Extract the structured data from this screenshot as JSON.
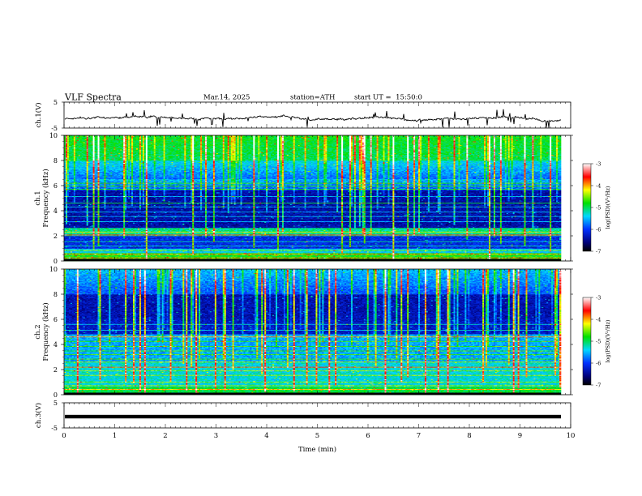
{
  "header": {
    "title": "VLF Spectra",
    "date": "Mar.14, 2025",
    "station": "station=ATH",
    "start": "start UT =  15:50:0"
  },
  "chart_data": [
    {
      "type": "line",
      "panel": "ch1-waveform",
      "ylabel": "ch.1(V)",
      "yticks": [
        "5",
        "-5"
      ],
      "ylim": [
        -5,
        5
      ],
      "xlim": [
        0,
        10
      ],
      "series_color": "#000000"
    },
    {
      "type": "heatmap",
      "panel": "ch1-spectrogram",
      "ylabel_top": "ch.1",
      "ylabel": "Frequency (kHz)",
      "yticks": [
        "0",
        "2",
        "4",
        "6",
        "8",
        "10"
      ],
      "ylim": [
        0,
        10
      ],
      "xlim": [
        0,
        9.8
      ],
      "colorbar": {
        "label": "log(PSD)(V²/Hz)",
        "ticks": [
          "-3",
          "-4",
          "-5",
          "-6",
          "-7"
        ],
        "range": [
          -7,
          -3
        ]
      }
    },
    {
      "type": "heatmap",
      "panel": "ch2-spectrogram",
      "ylabel_top": "ch.2",
      "ylabel": "Frequency (kHz)",
      "yticks": [
        "0",
        "2",
        "4",
        "6",
        "8",
        "10"
      ],
      "ylim": [
        0,
        10
      ],
      "xlim": [
        0,
        9.8
      ],
      "colorbar": {
        "label": "log(PSD)(V²/Hz)",
        "ticks": [
          "-3",
          "-4",
          "-5",
          "-6",
          "-7"
        ],
        "range": [
          -7,
          -3
        ]
      }
    },
    {
      "type": "line",
      "panel": "ch3-waveform",
      "ylabel": "ch.3(V)",
      "yticks": [
        "5",
        "-5"
      ],
      "ylim": [
        -5,
        5
      ],
      "xlim": [
        0,
        10
      ],
      "value_approx": -0.5,
      "series_color": "#000000"
    }
  ],
  "xaxis": {
    "label": "Time (min)",
    "ticks": [
      "0",
      "1",
      "2",
      "3",
      "4",
      "5",
      "6",
      "7",
      "8",
      "9",
      "10"
    ],
    "range": [
      0,
      10
    ]
  },
  "colors": {
    "background": "#ffffff",
    "cmap_low": "#000050",
    "cmap_blue": "#0040ff",
    "cmap_cyan": "#00e0ff",
    "cmap_green": "#00e000",
    "cmap_yellow": "#ffff00",
    "cmap_red": "#ff0000",
    "cmap_high": "#ffffff"
  }
}
